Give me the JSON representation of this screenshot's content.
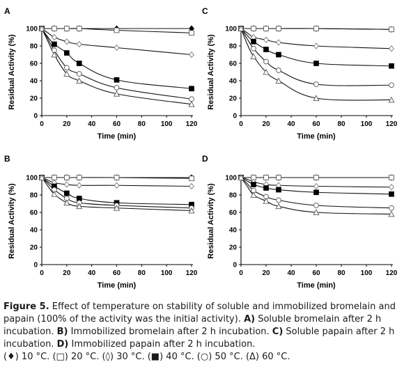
{
  "chart_data": [
    {
      "type": "line",
      "panel": "A",
      "xlabel": "Time (min)",
      "ylabel": "Residual Activity (%)",
      "xlim": [
        0,
        120
      ],
      "ylim": [
        0,
        100
      ],
      "xticks": [
        "0",
        "20",
        "40",
        "60",
        "80",
        "100",
        "120"
      ],
      "yticks": [
        "0",
        "20",
        "40",
        "60",
        "80",
        "100"
      ],
      "x": [
        0,
        5,
        10,
        20,
        30,
        60,
        120
      ],
      "series": [
        {
          "marker": "filled-diamond",
          "values": [
            100,
            100,
            100,
            100,
            100,
            100,
            100
          ]
        },
        {
          "marker": "open-square",
          "values": [
            100,
            100,
            100,
            100,
            100,
            98,
            95
          ]
        },
        {
          "marker": "open-diamond",
          "values": [
            100,
            95,
            90,
            85,
            82,
            78,
            70
          ]
        },
        {
          "marker": "filled-square",
          "values": [
            100,
            90,
            82,
            72,
            60,
            41,
            31
          ]
        },
        {
          "marker": "open-circle",
          "values": [
            100,
            88,
            75,
            55,
            48,
            32,
            19
          ]
        },
        {
          "marker": "open-triangle",
          "values": [
            100,
            85,
            70,
            48,
            40,
            25,
            13
          ]
        }
      ]
    },
    {
      "type": "line",
      "panel": "C",
      "xlabel": "Time (min)",
      "ylabel": "Residual Activity (%)",
      "xlim": [
        0,
        120
      ],
      "ylim": [
        0,
        100
      ],
      "xticks": [
        "0",
        "20",
        "40",
        "60",
        "80",
        "100",
        "120"
      ],
      "yticks": [
        "0",
        "20",
        "40",
        "60",
        "80",
        "100"
      ],
      "x": [
        0,
        5,
        10,
        20,
        30,
        60,
        120
      ],
      "series": [
        {
          "marker": "filled-diamond",
          "values": [
            100,
            100,
            100,
            100,
            100,
            100,
            99
          ]
        },
        {
          "marker": "open-square",
          "values": [
            100,
            100,
            100,
            100,
            100,
            100,
            99
          ]
        },
        {
          "marker": "open-diamond",
          "values": [
            100,
            95,
            90,
            87,
            84,
            80,
            77
          ]
        },
        {
          "marker": "filled-square",
          "values": [
            100,
            92,
            85,
            76,
            70,
            60,
            57
          ]
        },
        {
          "marker": "open-circle",
          "values": [
            100,
            88,
            77,
            62,
            52,
            36,
            35
          ]
        },
        {
          "marker": "open-triangle",
          "values": [
            100,
            82,
            68,
            50,
            40,
            20,
            18
          ]
        }
      ]
    },
    {
      "type": "line",
      "panel": "B",
      "xlabel": "Time (min)",
      "ylabel": "Residual Activity (%)",
      "xlim": [
        0,
        120
      ],
      "ylim": [
        0,
        100
      ],
      "xticks": [
        "0",
        "20",
        "40",
        "60",
        "80",
        "100",
        "120"
      ],
      "yticks": [
        "0",
        "20",
        "40",
        "60",
        "80",
        "100"
      ],
      "x": [
        0,
        5,
        10,
        20,
        30,
        60,
        120
      ],
      "series": [
        {
          "marker": "filled-diamond",
          "values": [
            100,
            100,
            100,
            100,
            100,
            100,
            100
          ]
        },
        {
          "marker": "open-square",
          "values": [
            100,
            100,
            100,
            100,
            100,
            100,
            99
          ]
        },
        {
          "marker": "open-diamond",
          "values": [
            100,
            97,
            94,
            92,
            91,
            91,
            90
          ]
        },
        {
          "marker": "filled-square",
          "values": [
            100,
            95,
            90,
            82,
            76,
            71,
            69
          ]
        },
        {
          "marker": "open-circle",
          "values": [
            100,
            93,
            86,
            76,
            71,
            68,
            65
          ]
        },
        {
          "marker": "open-triangle",
          "values": [
            100,
            90,
            81,
            71,
            67,
            65,
            62
          ]
        }
      ]
    },
    {
      "type": "line",
      "panel": "D",
      "xlabel": "Time (min)",
      "ylabel": "Residual Activity (%)",
      "xlim": [
        0,
        120
      ],
      "ylim": [
        0,
        100
      ],
      "xticks": [
        "0",
        "20",
        "40",
        "60",
        "80",
        "100",
        "120"
      ],
      "yticks": [
        "0",
        "20",
        "40",
        "60",
        "80",
        "100"
      ],
      "x": [
        0,
        5,
        10,
        20,
        30,
        60,
        120
      ],
      "series": [
        {
          "marker": "filled-diamond",
          "values": [
            100,
            100,
            100,
            100,
            100,
            100,
            100
          ]
        },
        {
          "marker": "open-square",
          "values": [
            100,
            100,
            100,
            100,
            100,
            100,
            100
          ]
        },
        {
          "marker": "open-diamond",
          "values": [
            100,
            98,
            95,
            92,
            91,
            90,
            89
          ]
        },
        {
          "marker": "filled-square",
          "values": [
            100,
            96,
            92,
            88,
            86,
            83,
            81
          ]
        },
        {
          "marker": "open-circle",
          "values": [
            100,
            93,
            85,
            78,
            74,
            68,
            65
          ]
        },
        {
          "marker": "open-triangle",
          "values": [
            100,
            90,
            80,
            73,
            67,
            60,
            58
          ]
        }
      ]
    }
  ],
  "caption": {
    "label": "Figure 5.",
    "text": " Effect of temperature on stability of soluble and immobilized bromelain and papain (100% of the activity was the initial activity). ",
    "panels": [
      {
        "letter": "A)",
        "text": " Soluble bromelain after 2 h incubation. "
      },
      {
        "letter": "B)",
        "text": " Immobilized bromelain after 2 h incubation. "
      },
      {
        "letter": "C)",
        "text": " Soluble papain after 2 h incubation. "
      },
      {
        "letter": "D)",
        "text": " Immobilized papain after 2 h incubation."
      }
    ],
    "legend": "(♦) 10 °C. (□) 20 °C. (◊) 30 °C. (■) 40 °C. (○) 50 °C. (Δ) 60 °C."
  }
}
